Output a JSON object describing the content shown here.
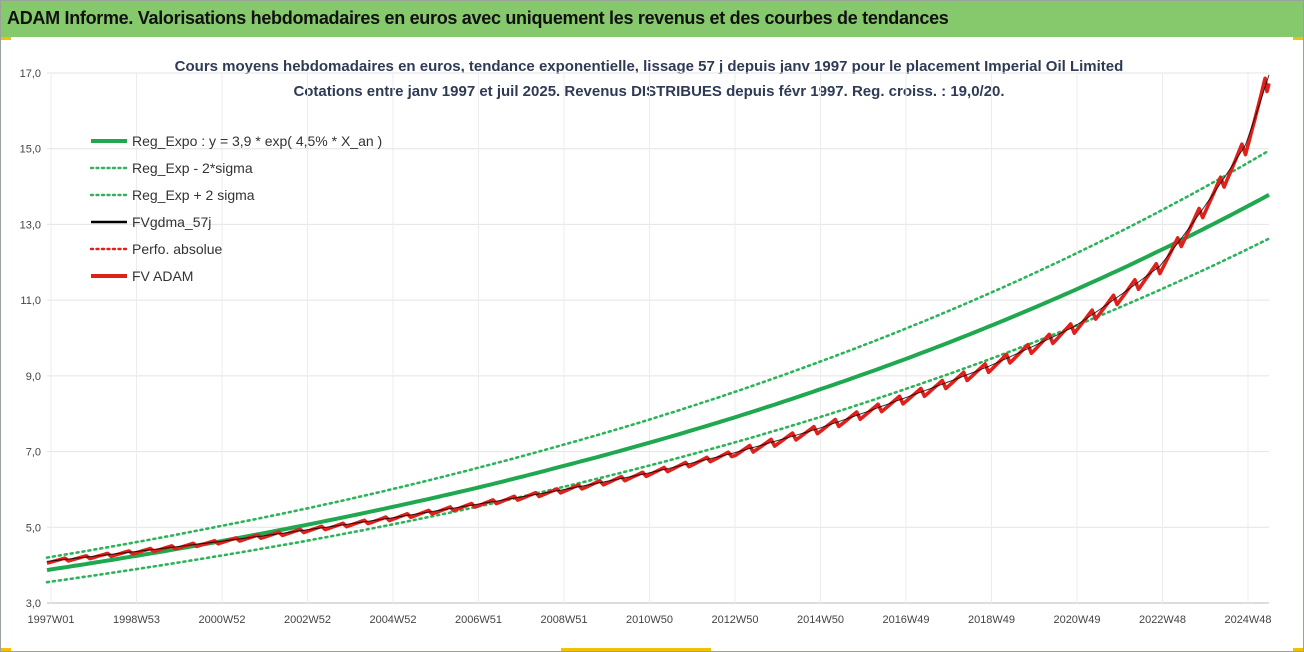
{
  "header": {
    "title": "ADAM Informe. Valorisations hebdomadaires en euros avec uniquement les revenus et des courbes de tendances"
  },
  "colors": {
    "title_bar": "#86c86c",
    "reg_expo": "#1fa84f",
    "sigma": "#2db45a",
    "fvgdma": "#000000",
    "perfo": "#e0201b",
    "fvadam": "#e0201b"
  },
  "chart_data": {
    "type": "line",
    "title": "Cours moyens hebdomadaires en euros, tendance exponentielle, lissage 57 j depuis janv 1997 pour le placement Imperial Oil Limited",
    "subtitle": "Cotations entre janv 1997 et juil 2025. Revenus DISTRIBUES depuis févr 1997. Reg. croiss. : 19,0/20.",
    "xlabel": "",
    "ylabel": "",
    "ylim": [
      3.0,
      17.0
    ],
    "y_ticks": [
      "3,0",
      "5,0",
      "7,0",
      "9,0",
      "11,0",
      "13,0",
      "15,0",
      "17,0"
    ],
    "x_ticks": [
      "1997W01",
      "1998W53",
      "2000W52",
      "2002W52",
      "2004W52",
      "2006W51",
      "2008W51",
      "2010W50",
      "2012W50",
      "2014W50",
      "2016W49",
      "2018W49",
      "2020W49",
      "2022W48",
      "2024W48"
    ],
    "grid": true,
    "legend_position": "top-left",
    "legend": [
      {
        "name": "Reg_Expo : y = 3,9 * exp( 4,5% *  X_an )",
        "style": "solid",
        "color": "#1fa84f"
      },
      {
        "name": "Reg_Exp - 2*sigma",
        "style": "dotted",
        "color": "#2db45a"
      },
      {
        "name": "Reg_Exp + 2 sigma",
        "style": "dotted",
        "color": "#2db45a"
      },
      {
        "name": "FVgdma_57j",
        "style": "solid",
        "color": "#000000"
      },
      {
        "name": "Perfo. absolue",
        "style": "dotted",
        "color": "#e0201b"
      },
      {
        "name": "FV ADAM",
        "style": "solid",
        "color": "#e0201b"
      }
    ],
    "x": [
      0,
      2,
      4,
      6,
      8,
      10,
      12,
      14,
      16,
      18,
      20,
      22,
      24,
      26,
      28
    ],
    "series": [
      {
        "name": "Reg_Expo : y = 3,9 * exp( 4,5% *  X_an )",
        "values": [
          3.87,
          4.23,
          4.62,
          5.05,
          5.52,
          6.03,
          6.6,
          7.21,
          7.88,
          8.62,
          9.42,
          10.3,
          11.26,
          12.31,
          13.45
        ]
      },
      {
        "name": "Reg_Exp - 2*sigma",
        "values": [
          3.55,
          3.88,
          4.24,
          4.63,
          5.06,
          5.53,
          6.05,
          6.61,
          7.22,
          7.89,
          8.63,
          9.43,
          10.31,
          11.27,
          12.32
        ]
      },
      {
        "name": "Reg_Exp + 2 sigma",
        "values": [
          4.2,
          4.59,
          5.02,
          5.48,
          5.99,
          6.55,
          7.16,
          7.82,
          8.55,
          9.35,
          10.22,
          11.17,
          12.21,
          13.35,
          14.59
        ]
      },
      {
        "name": "FV ADAM",
        "values": [
          4.1,
          4.35,
          4.62,
          4.92,
          5.24,
          5.6,
          5.98,
          6.42,
          6.95,
          7.6,
          8.4,
          9.25,
          10.3,
          11.9,
          15.1
        ]
      }
    ],
    "x_end": 28.55,
    "fvadam_end": 16.95
  }
}
